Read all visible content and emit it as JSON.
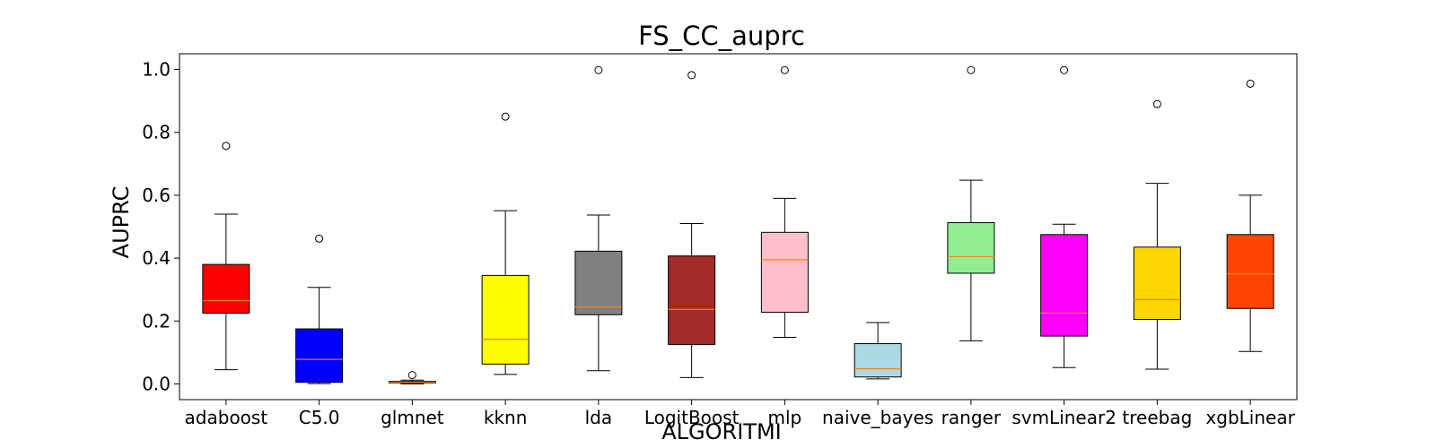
{
  "chart_data": {
    "type": "box",
    "title": "FS_CC_auprc",
    "xlabel": "ALGORITMI",
    "ylabel": "AUPRC",
    "ylim": [
      -0.05,
      1.05
    ],
    "yticks": [
      "0.0",
      "0.2",
      "0.4",
      "0.6",
      "0.8",
      "1.0"
    ],
    "grid": false,
    "median_color": "#ff7f0e",
    "series": [
      {
        "category": "adaboost",
        "color": "#ff0000",
        "whisker_low": 0.045,
        "q1": 0.225,
        "median": 0.265,
        "q3": 0.38,
        "whisker_high": 0.54,
        "outliers": [
          0.757
        ]
      },
      {
        "category": "C5.0",
        "color": "#0000ff",
        "whisker_low": 0.001,
        "q1": 0.005,
        "median": 0.078,
        "q3": 0.175,
        "whisker_high": 0.307,
        "outliers": [
          0.462
        ]
      },
      {
        "category": "glmnet",
        "color": "#ff8c00",
        "whisker_low": 0.0,
        "q1": 0.003,
        "median": 0.005,
        "q3": 0.008,
        "whisker_high": 0.012,
        "outliers": [
          0.028
        ]
      },
      {
        "category": "kknn",
        "color": "#ffff00",
        "whisker_low": 0.03,
        "q1": 0.063,
        "median": 0.142,
        "q3": 0.345,
        "whisker_high": 0.551,
        "outliers": [
          0.85
        ]
      },
      {
        "category": "lda",
        "color": "#808080",
        "whisker_low": 0.042,
        "q1": 0.22,
        "median": 0.245,
        "q3": 0.422,
        "whisker_high": 0.537,
        "outliers": [
          0.998
        ]
      },
      {
        "category": "LogitBoost",
        "color": "#a52a2a",
        "whisker_low": 0.02,
        "q1": 0.125,
        "median": 0.237,
        "q3": 0.407,
        "whisker_high": 0.51,
        "outliers": [
          0.982
        ]
      },
      {
        "category": "mlp",
        "color": "#ffc0cb",
        "whisker_low": 0.148,
        "q1": 0.228,
        "median": 0.395,
        "q3": 0.482,
        "whisker_high": 0.59,
        "outliers": [
          0.998
        ]
      },
      {
        "category": "naive_bayes",
        "color": "#add8e6",
        "whisker_low": 0.016,
        "q1": 0.022,
        "median": 0.048,
        "q3": 0.128,
        "whisker_high": 0.195,
        "outliers": []
      },
      {
        "category": "ranger",
        "color": "#90ee90",
        "whisker_low": 0.137,
        "q1": 0.352,
        "median": 0.405,
        "q3": 0.513,
        "whisker_high": 0.648,
        "outliers": [
          0.998
        ]
      },
      {
        "category": "svmLinear2",
        "color": "#ff00ff",
        "whisker_low": 0.052,
        "q1": 0.152,
        "median": 0.225,
        "q3": 0.475,
        "whisker_high": 0.508,
        "outliers": [
          0.998
        ]
      },
      {
        "category": "treebag",
        "color": "#ffd700",
        "whisker_low": 0.047,
        "q1": 0.205,
        "median": 0.268,
        "q3": 0.435,
        "whisker_high": 0.638,
        "outliers": [
          0.89
        ]
      },
      {
        "category": "xgbLinear",
        "color": "#ff4500",
        "whisker_low": 0.103,
        "q1": 0.24,
        "median": 0.35,
        "q3": 0.475,
        "whisker_high": 0.6,
        "outliers": [
          0.955
        ]
      }
    ]
  }
}
